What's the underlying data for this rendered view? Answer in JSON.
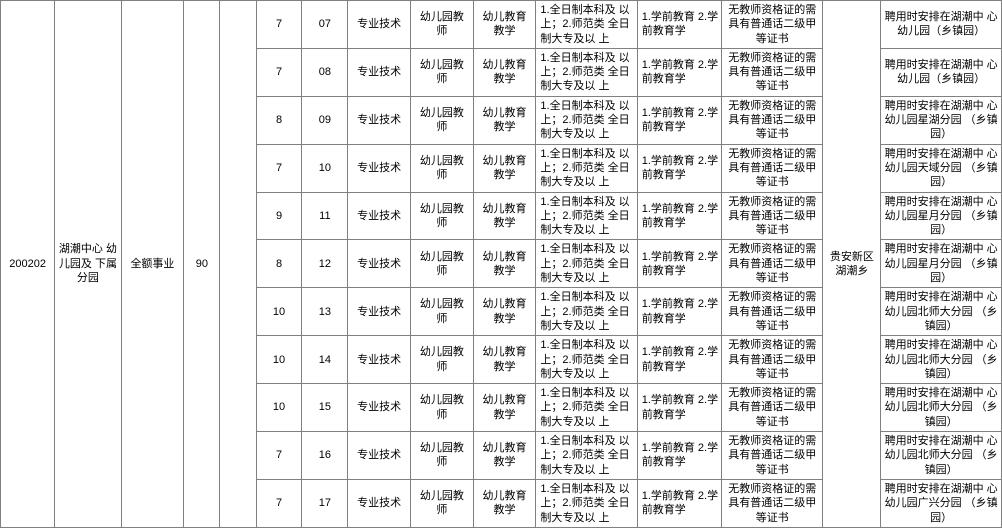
{
  "table": {
    "unit_code": "200202",
    "unit_name": "湖潮中心\n幼儿园及\n下属分园",
    "funding_type": "全额事业",
    "total_positions": "90",
    "area": "贵安新区\n湖潮乡",
    "border_color": "#808080",
    "background_color": "#ffffff",
    "font_size": 11,
    "rows": [
      {
        "count": "7",
        "pos_num": "07",
        "job_category": "专业技术",
        "position_name": "幼儿园教\n师",
        "subject": "幼儿教育\n教学",
        "education": "1.全日制本科及\n以上；2.师范类\n全日制大专及以\n上",
        "major": "1.学前教育\n2.学前教育学",
        "cert": "无教师资格证的需\n具有普通话二级甲\n等证书",
        "remark": "聘用时安排在湖潮中\n心幼儿园（乡镇园）"
      },
      {
        "count": "7",
        "pos_num": "08",
        "job_category": "专业技术",
        "position_name": "幼儿园教\n师",
        "subject": "幼儿教育\n教学",
        "education": "1.全日制本科及\n以上；2.师范类\n全日制大专及以\n上",
        "major": "1.学前教育\n2.学前教育学",
        "cert": "无教师资格证的需\n具有普通话二级甲\n等证书",
        "remark": "聘用时安排在湖潮中\n心幼儿园（乡镇园）"
      },
      {
        "count": "8",
        "pos_num": "09",
        "job_category": "专业技术",
        "position_name": "幼儿园教\n师",
        "subject": "幼儿教育\n教学",
        "education": "1.全日制本科及\n以上；2.师范类\n全日制大专及以\n上",
        "major": "1.学前教育\n2.学前教育学",
        "cert": "无教师资格证的需\n具有普通话二级甲\n等证书",
        "remark": "聘用时安排在湖潮中\n心幼儿园星湖分园\n（乡镇园）"
      },
      {
        "count": "7",
        "pos_num": "10",
        "job_category": "专业技术",
        "position_name": "幼儿园教\n师",
        "subject": "幼儿教育\n教学",
        "education": "1.全日制本科及\n以上；2.师范类\n全日制大专及以\n上",
        "major": "1.学前教育\n2.学前教育学",
        "cert": "无教师资格证的需\n具有普通话二级甲\n等证书",
        "remark": "聘用时安排在湖潮中\n心幼儿园天域分园\n（乡镇园）"
      },
      {
        "count": "9",
        "pos_num": "11",
        "job_category": "专业技术",
        "position_name": "幼儿园教\n师",
        "subject": "幼儿教育\n教学",
        "education": "1.全日制本科及\n以上；2.师范类\n全日制大专及以\n上",
        "major": "1.学前教育\n2.学前教育学",
        "cert": "无教师资格证的需\n具有普通话二级甲\n等证书",
        "remark": "聘用时安排在湖潮中\n心幼儿园星月分园\n（乡镇园）"
      },
      {
        "count": "8",
        "pos_num": "12",
        "job_category": "专业技术",
        "position_name": "幼儿园教\n师",
        "subject": "幼儿教育\n教学",
        "education": "1.全日制本科及\n以上；2.师范类\n全日制大专及以\n上",
        "major": "1.学前教育\n2.学前教育学",
        "cert": "无教师资格证的需\n具有普通话二级甲\n等证书",
        "remark": "聘用时安排在湖潮中\n心幼儿园星月分园\n（乡镇园）"
      },
      {
        "count": "10",
        "pos_num": "13",
        "job_category": "专业技术",
        "position_name": "幼儿园教\n师",
        "subject": "幼儿教育\n教学",
        "education": "1.全日制本科及\n以上；2.师范类\n全日制大专及以\n上",
        "major": "1.学前教育\n2.学前教育学",
        "cert": "无教师资格证的需\n具有普通话二级甲\n等证书",
        "remark": "聘用时安排在湖潮中\n心幼儿园北师大分园\n（乡镇园）"
      },
      {
        "count": "10",
        "pos_num": "14",
        "job_category": "专业技术",
        "position_name": "幼儿园教\n师",
        "subject": "幼儿教育\n教学",
        "education": "1.全日制本科及\n以上；2.师范类\n全日制大专及以\n上",
        "major": "1.学前教育\n2.学前教育学",
        "cert": "无教师资格证的需\n具有普通话二级甲\n等证书",
        "remark": "聘用时安排在湖潮中\n心幼儿园北师大分园\n（乡镇园）"
      },
      {
        "count": "10",
        "pos_num": "15",
        "job_category": "专业技术",
        "position_name": "幼儿园教\n师",
        "subject": "幼儿教育\n教学",
        "education": "1.全日制本科及\n以上；2.师范类\n全日制大专及以\n上",
        "major": "1.学前教育\n2.学前教育学",
        "cert": "无教师资格证的需\n具有普通话二级甲\n等证书",
        "remark": "聘用时安排在湖潮中\n心幼儿园北师大分园\n（乡镇园）"
      },
      {
        "count": "7",
        "pos_num": "16",
        "job_category": "专业技术",
        "position_name": "幼儿园教\n师",
        "subject": "幼儿教育\n教学",
        "education": "1.全日制本科及\n以上；2.师范类\n全日制大专及以\n上",
        "major": "1.学前教育\n2.学前教育学",
        "cert": "无教师资格证的需\n具有普通话二级甲\n等证书",
        "remark": "聘用时安排在湖潮中\n心幼儿园北师大分园\n（乡镇园）"
      },
      {
        "count": "7",
        "pos_num": "17",
        "job_category": "专业技术",
        "position_name": "幼儿园教\n师",
        "subject": "幼儿教育\n教学",
        "education": "1.全日制本科及\n以上；2.师范类\n全日制大专及以\n上",
        "major": "1.学前教育\n2.学前教育学",
        "cert": "无教师资格证的需\n具有普通话二级甲\n等证书",
        "remark": "聘用时安排在湖潮中\n心幼儿园广兴分园\n（乡镇园）"
      }
    ]
  }
}
